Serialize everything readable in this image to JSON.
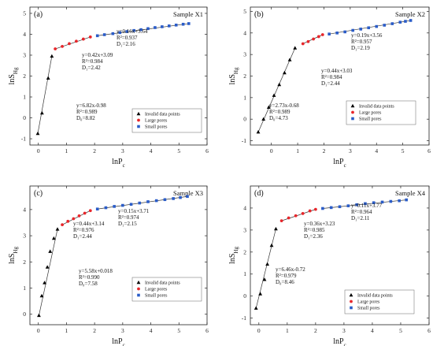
{
  "colors": {
    "invalid": "#000000",
    "large": "#e8262b",
    "small": "#2a5cc8",
    "axis": "#222222",
    "fit": "#333333"
  },
  "chart_data": [
    {
      "type": "scatter",
      "panel_label": "(a)",
      "sample": "Sample X1",
      "xlabel": "lnP_c",
      "ylabel": "lnS_Hg",
      "xlim": [
        -0.3,
        6
      ],
      "ylim": [
        -1.3,
        5.3
      ],
      "xticks": [
        0,
        1,
        2,
        3,
        4,
        5,
        6
      ],
      "yticks": [
        -1,
        0,
        1,
        2,
        3,
        4,
        5
      ],
      "grid": false,
      "legend_position": "bottom-right",
      "legend": [
        "Invalid data points",
        "Large pores",
        "Small pores"
      ],
      "series": [
        {
          "name": "Invalid data points",
          "marker": "triangle",
          "points": [
            [
              -0.02,
              -0.75
            ],
            [
              0.13,
              0.23
            ],
            [
              0.35,
              1.9
            ],
            [
              0.48,
              2.95
            ]
          ]
        },
        {
          "name": "Large pores",
          "marker": "circle",
          "points": [
            [
              0.6,
              3.3
            ],
            [
              0.85,
              3.42
            ],
            [
              1.1,
              3.55
            ],
            [
              1.35,
              3.67
            ],
            [
              1.6,
              3.77
            ],
            [
              1.85,
              3.87
            ]
          ]
        },
        {
          "name": "Small pores",
          "marker": "square",
          "points": [
            [
              2.1,
              3.93
            ],
            [
              2.35,
              3.98
            ],
            [
              2.65,
              4.03
            ],
            [
              2.9,
              4.08
            ],
            [
              3.15,
              4.13
            ],
            [
              3.4,
              4.18
            ],
            [
              3.65,
              4.22
            ],
            [
              3.9,
              4.27
            ],
            [
              4.15,
              4.32
            ],
            [
              4.4,
              4.36
            ],
            [
              4.65,
              4.4
            ],
            [
              4.9,
              4.44
            ],
            [
              5.15,
              4.48
            ],
            [
              5.35,
              4.51
            ]
          ]
        }
      ],
      "annotations": [
        {
          "lines": [
            "y=6.82x-0.98",
            "R²=0.989",
            "D₀=8.82"
          ]
        },
        {
          "lines": [
            "y=0.42x+3.09",
            "R²=0.984",
            "D₁=2.42"
          ]
        },
        {
          "lines": [
            "y=0.16x+3.64",
            "R²=0.937",
            "D₁=2.16"
          ]
        }
      ]
    },
    {
      "type": "scatter",
      "panel_label": "(b)",
      "sample": "Sample X2",
      "xlabel": "lnP_c",
      "ylabel": "lnS_Hg",
      "xlim": [
        -0.8,
        6
      ],
      "ylim": [
        -1.2,
        5.2
      ],
      "xticks": [
        0,
        1,
        2,
        3,
        4,
        5,
        6
      ],
      "yticks": [
        -1,
        0,
        1,
        2,
        3,
        4,
        5
      ],
      "grid": false,
      "legend_position": "bottom-right",
      "legend": [
        "Invalid data points",
        "Large pores",
        "Small pores"
      ],
      "series": [
        {
          "name": "Invalid data points",
          "marker": "triangle",
          "points": [
            [
              -0.5,
              -0.6
            ],
            [
              -0.3,
              0.0
            ],
            [
              -0.1,
              0.55
            ],
            [
              0.1,
              1.1
            ],
            [
              0.3,
              1.6
            ],
            [
              0.5,
              2.15
            ],
            [
              0.7,
              2.75
            ],
            [
              0.9,
              3.3
            ]
          ]
        },
        {
          "name": "Large pores",
          "marker": "circle",
          "points": [
            [
              1.2,
              3.5
            ],
            [
              1.4,
              3.6
            ],
            [
              1.6,
              3.72
            ],
            [
              1.8,
              3.83
            ],
            [
              1.95,
              3.92
            ]
          ]
        },
        {
          "name": "Small pores",
          "marker": "square",
          "points": [
            [
              2.2,
              3.95
            ],
            [
              2.5,
              4.0
            ],
            [
              2.8,
              4.05
            ],
            [
              3.1,
              4.12
            ],
            [
              3.4,
              4.18
            ],
            [
              3.7,
              4.24
            ],
            [
              4.0,
              4.3
            ],
            [
              4.3,
              4.36
            ],
            [
              4.6,
              4.43
            ],
            [
              4.9,
              4.5
            ],
            [
              5.1,
              4.54
            ],
            [
              5.3,
              4.58
            ]
          ]
        }
      ],
      "annotations": [
        {
          "lines": [
            "y=2.73x-0.68",
            "R²=0.989",
            "D₀=4.73"
          ]
        },
        {
          "lines": [
            "y=0.44x+3.03",
            "R²=0.984",
            "D₁=2.44"
          ]
        },
        {
          "lines": [
            "y=0.19x+3.56",
            "R²=0.957",
            "D₁=2.19"
          ]
        }
      ]
    },
    {
      "type": "scatter",
      "panel_label": "(c)",
      "sample": "Sample X3",
      "xlabel": "lnP_c",
      "ylabel": "lnS_Hg",
      "xlim": [
        -0.3,
        6
      ],
      "ylim": [
        -0.4,
        4.9
      ],
      "xticks": [
        0,
        1,
        2,
        3,
        4,
        5,
        6
      ],
      "yticks": [
        0,
        1,
        2,
        3,
        4
      ],
      "grid": false,
      "legend_position": "bottom-right",
      "legend": [
        "Invalid data points",
        "Large pores",
        "Small pores"
      ],
      "series": [
        {
          "name": "Invalid data points",
          "marker": "triangle",
          "points": [
            [
              0.02,
              -0.05
            ],
            [
              0.12,
              0.7
            ],
            [
              0.22,
              1.2
            ],
            [
              0.32,
              1.8
            ],
            [
              0.42,
              2.4
            ],
            [
              0.55,
              2.9
            ],
            [
              0.68,
              3.25
            ]
          ]
        },
        {
          "name": "Large pores",
          "marker": "circle",
          "points": [
            [
              0.85,
              3.42
            ],
            [
              1.05,
              3.55
            ],
            [
              1.25,
              3.65
            ],
            [
              1.45,
              3.76
            ],
            [
              1.65,
              3.86
            ],
            [
              1.85,
              3.96
            ]
          ]
        },
        {
          "name": "Small pores",
          "marker": "square",
          "points": [
            [
              2.1,
              4.02
            ],
            [
              2.4,
              4.07
            ],
            [
              2.7,
              4.12
            ],
            [
              3.0,
              4.16
            ],
            [
              3.3,
              4.2
            ],
            [
              3.6,
              4.25
            ],
            [
              3.9,
              4.3
            ],
            [
              4.2,
              4.34
            ],
            [
              4.5,
              4.38
            ],
            [
              4.8,
              4.42
            ],
            [
              5.05,
              4.46
            ],
            [
              5.3,
              4.5
            ]
          ]
        }
      ],
      "annotations": [
        {
          "lines": [
            "y=5.58x+0.018",
            "R²=0.990",
            "D₀=7.58"
          ]
        },
        {
          "lines": [
            "y=0.44x+3.14",
            "R²=0.976",
            "D₁=2.44"
          ]
        },
        {
          "lines": [
            "y=0.15x+3.71",
            "R²=0.974",
            "D₁=2.15"
          ]
        }
      ]
    },
    {
      "type": "scatter",
      "panel_label": "(d)",
      "sample": "Sample X4",
      "xlabel": "lnP_c",
      "ylabel": "lnS_Hg",
      "xlim": [
        -0.3,
        6
      ],
      "ylim": [
        -1.3,
        5.0
      ],
      "xticks": [
        0,
        1,
        2,
        3,
        4,
        5,
        6
      ],
      "yticks": [
        -1,
        0,
        1,
        2,
        3,
        4
      ],
      "grid": false,
      "legend_position": "bottom-right",
      "legend": [
        "Invalid data points",
        "Large pores",
        "Small pores"
      ],
      "series": [
        {
          "name": "Invalid data points",
          "marker": "triangle",
          "points": [
            [
              -0.1,
              -0.55
            ],
            [
              0.05,
              0.1
            ],
            [
              0.2,
              0.75
            ],
            [
              0.3,
              1.45
            ],
            [
              0.45,
              2.3
            ],
            [
              0.6,
              3.05
            ]
          ]
        },
        {
          "name": "Large pores",
          "marker": "circle",
          "points": [
            [
              0.8,
              3.42
            ],
            [
              1.05,
              3.55
            ],
            [
              1.3,
              3.65
            ],
            [
              1.55,
              3.75
            ],
            [
              1.8,
              3.87
            ],
            [
              2.0,
              3.94
            ]
          ]
        },
        {
          "name": "Small pores",
          "marker": "square",
          "points": [
            [
              2.25,
              3.98
            ],
            [
              2.55,
              4.02
            ],
            [
              2.85,
              4.06
            ],
            [
              3.15,
              4.1
            ],
            [
              3.45,
              4.15
            ],
            [
              3.75,
              4.2
            ],
            [
              4.05,
              4.24
            ],
            [
              4.35,
              4.27
            ],
            [
              4.65,
              4.3
            ],
            [
              4.95,
              4.33
            ],
            [
              5.2,
              4.37
            ]
          ]
        }
      ],
      "annotations": [
        {
          "lines": [
            "y=6.46x-0.72",
            "R²=0.979",
            "D₀=8.46"
          ]
        },
        {
          "lines": [
            "y=0.36x+3.23",
            "R²=0.985",
            "D₁=2.36"
          ]
        },
        {
          "lines": [
            "y=0.11x+3.77",
            "R²=0.964",
            "D₁=2.11"
          ]
        }
      ]
    }
  ]
}
